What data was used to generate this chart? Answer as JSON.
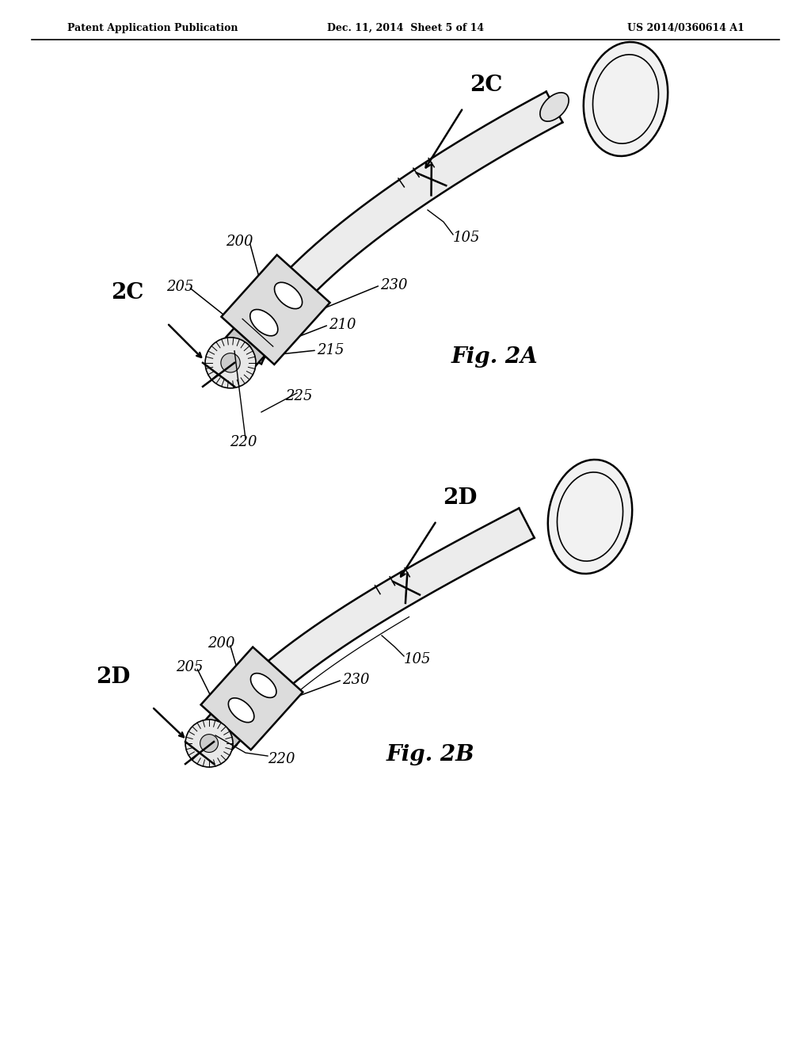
{
  "background_color": "#ffffff",
  "header_left": "Patent Application Publication",
  "header_center": "Dec. 11, 2014  Sheet 5 of 14",
  "header_right": "US 2014/0360614 A1",
  "fig2a_label": "Fig. 2A",
  "fig2b_label": "Fig. 2B",
  "line_color": "#000000",
  "fill_light": "#f0f0f0",
  "fill_mid": "#d8d8d8",
  "fill_dark": "#b0b0b0"
}
